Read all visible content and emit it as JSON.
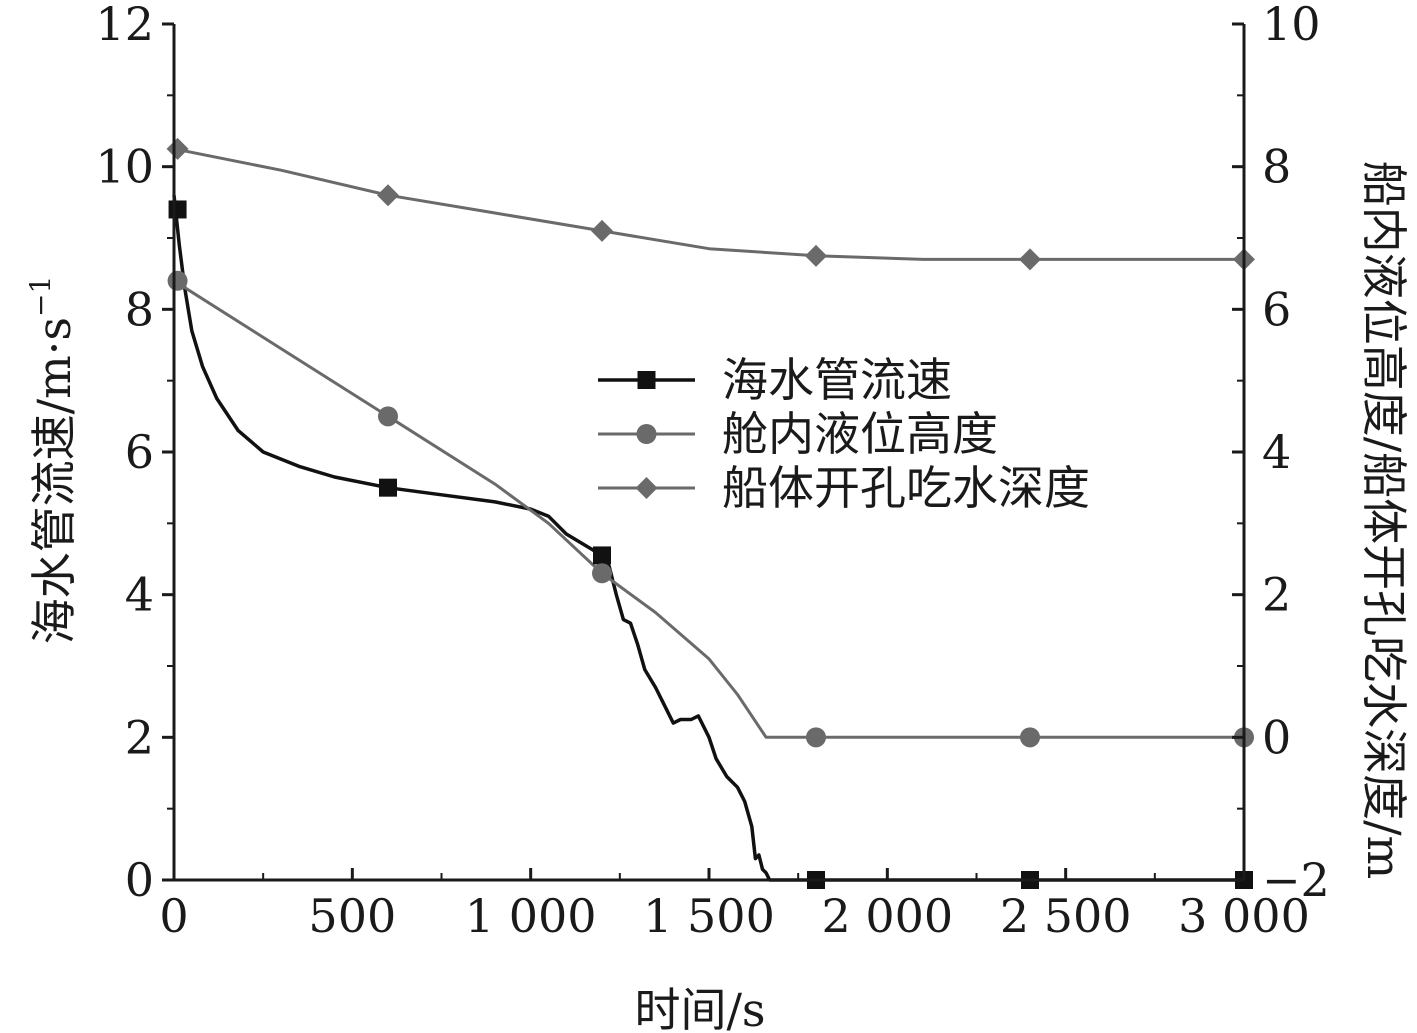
{
  "chart_data": {
    "type": "line",
    "title": "",
    "xlabel": "时间/s",
    "ylabel_left": "海水管流速/m·s",
    "ylabel_left_sup": "−1",
    "ylabel_right": "船内液位高度/船体开孔吃水深度/m",
    "xlim": [
      0,
      3000
    ],
    "ylim_left": [
      0,
      12
    ],
    "ylim_right": [
      -2,
      10
    ],
    "x_ticks": [
      0,
      500,
      1000,
      1500,
      2000,
      2500,
      3000
    ],
    "x_tick_labels": [
      "0",
      "500",
      "1 000",
      "1 500",
      "2 000",
      "2 500",
      "3 000"
    ],
    "y_left_ticks": [
      0,
      2,
      4,
      6,
      8,
      10,
      12
    ],
    "y_left_tick_labels": [
      "0",
      "2",
      "4",
      "6",
      "8",
      "10",
      "12"
    ],
    "y_right_ticks": [
      -2,
      0,
      2,
      4,
      6,
      8,
      10
    ],
    "y_right_tick_labels": [
      "−2",
      "0",
      "2",
      "4",
      "6",
      "8",
      "10"
    ],
    "legend_position": "center-right",
    "series": [
      {
        "name": "海水管流速",
        "axis": "left",
        "marker": "square",
        "color": "#111111",
        "x": [
          0,
          15,
          30,
          50,
          80,
          120,
          180,
          250,
          350,
          450,
          600,
          750,
          900,
          1000,
          1050,
          1100,
          1150,
          1200,
          1220,
          1240,
          1260,
          1280,
          1300,
          1320,
          1350,
          1380,
          1400,
          1420,
          1450,
          1470,
          1500,
          1520,
          1550,
          1580,
          1600,
          1620,
          1630,
          1640,
          1650,
          1660,
          1670,
          1800,
          2400,
          3000
        ],
        "y": [
          9.6,
          8.9,
          8.3,
          7.7,
          7.2,
          6.75,
          6.3,
          6.0,
          5.8,
          5.65,
          5.5,
          5.4,
          5.3,
          5.2,
          5.1,
          4.85,
          4.7,
          4.55,
          4.4,
          4.0,
          3.65,
          3.6,
          3.3,
          2.95,
          2.7,
          2.4,
          2.2,
          2.25,
          2.25,
          2.3,
          2.0,
          1.7,
          1.45,
          1.3,
          1.1,
          0.75,
          0.3,
          0.35,
          0.15,
          0.1,
          0.0,
          0.0,
          0.0,
          0.0
        ],
        "markers_x": [
          10,
          600,
          1200,
          1800,
          2400,
          3000
        ],
        "markers_y": [
          9.4,
          5.5,
          4.55,
          0.0,
          0.0,
          0.0
        ]
      },
      {
        "name": "舱内液位高度",
        "axis": "right",
        "marker": "circle",
        "color": "#6a6a6a",
        "x": [
          0,
          300,
          600,
          900,
          1050,
          1200,
          1350,
          1500,
          1580,
          1660,
          1800,
          2400,
          3000
        ],
        "y": [
          6.4,
          5.45,
          4.5,
          3.55,
          3.0,
          2.3,
          1.75,
          1.1,
          0.6,
          0.0,
          0.0,
          0.0,
          0.0
        ],
        "markers_x": [
          10,
          600,
          1200,
          1800,
          2400,
          3000
        ],
        "markers_y": [
          6.4,
          4.5,
          2.3,
          0.0,
          0.0,
          0.0
        ]
      },
      {
        "name": "船体开孔吃水深度",
        "axis": "right",
        "marker": "diamond",
        "color": "#6a6a6a",
        "x": [
          0,
          300,
          600,
          900,
          1200,
          1500,
          1800,
          2100,
          2400,
          2700,
          3000
        ],
        "y": [
          8.25,
          7.95,
          7.6,
          7.35,
          7.1,
          6.85,
          6.75,
          6.7,
          6.7,
          6.7,
          6.7
        ],
        "markers_x": [
          10,
          600,
          1200,
          1800,
          2400,
          3000
        ],
        "markers_y": [
          8.25,
          7.6,
          7.1,
          6.75,
          6.7,
          6.7
        ]
      }
    ]
  }
}
